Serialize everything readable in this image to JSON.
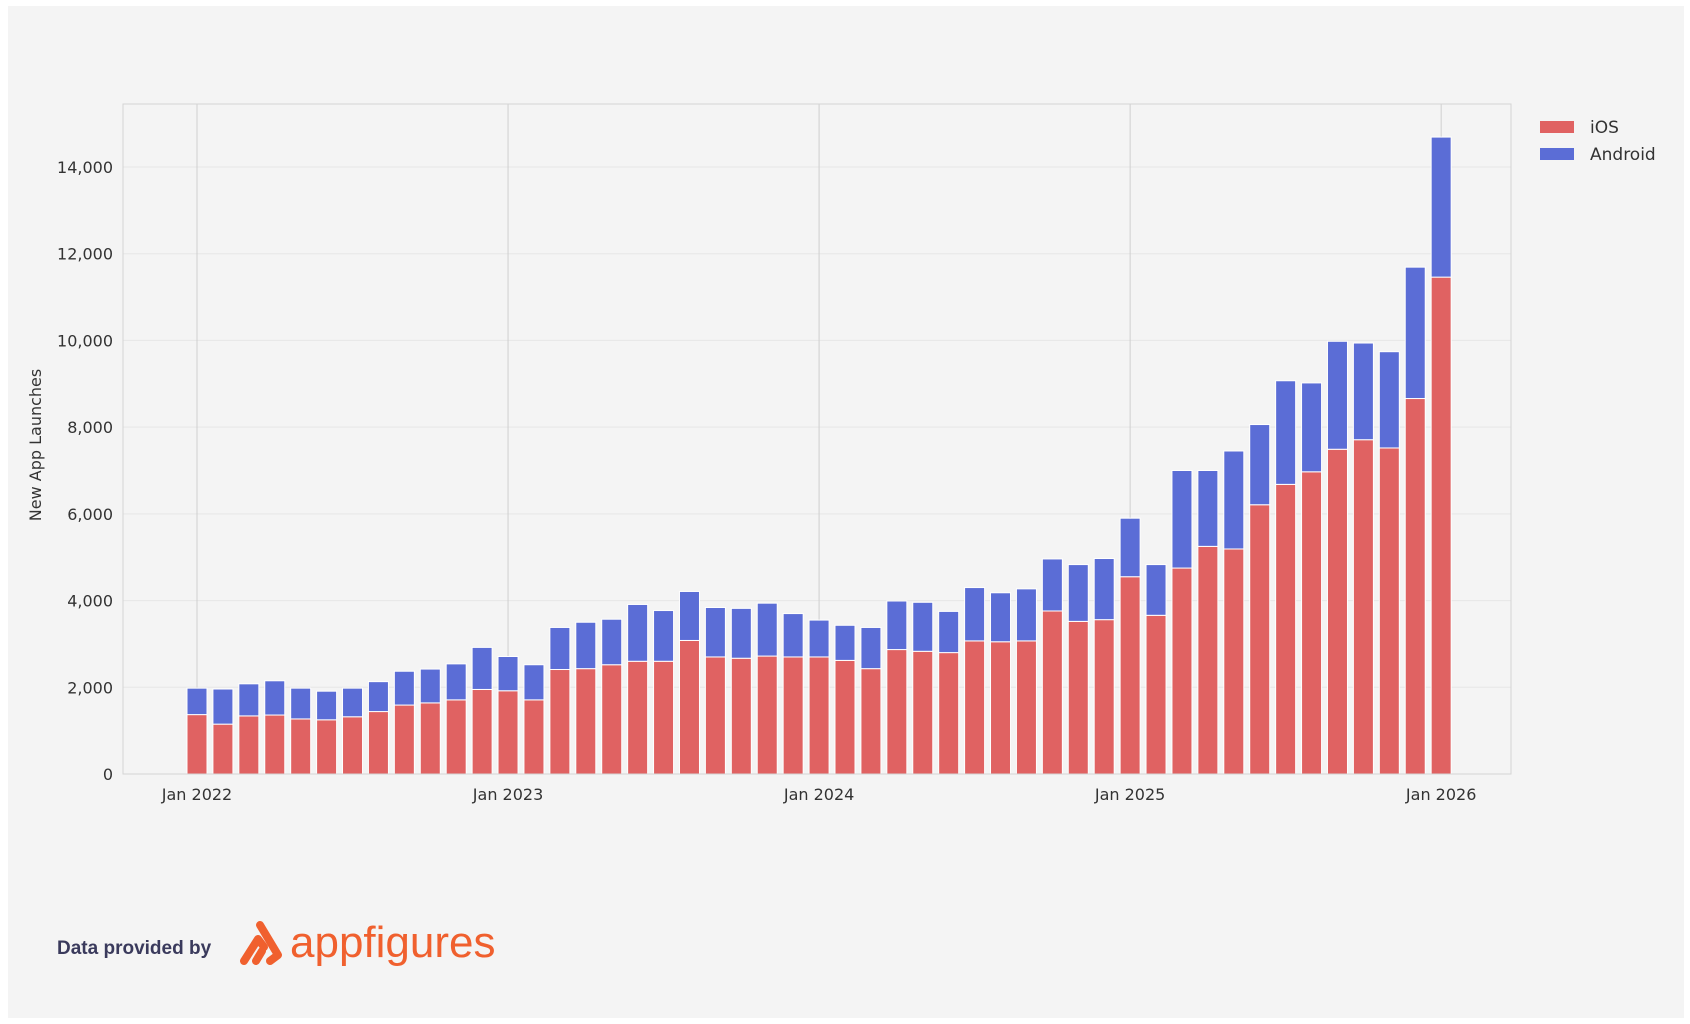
{
  "chart_data": {
    "type": "bar",
    "stacked": true,
    "title": "",
    "xlabel": "",
    "ylabel": "New App Launches",
    "ylim": [
      0,
      15000
    ],
    "yticks": [
      "0",
      "2,000",
      "4,000",
      "6,000",
      "8,000",
      "10,000",
      "12,000",
      "14,000"
    ],
    "ytick_values": [
      0,
      2000,
      4000,
      6000,
      8000,
      10000,
      12000,
      14000
    ],
    "xtick_labels": [
      "Jan 2022",
      "Jan 2023",
      "Jan 2024",
      "Jan 2025",
      "Jan 2026"
    ],
    "grid": true,
    "legend_position": "top-right",
    "x": [
      "2022-01",
      "2022-02",
      "2022-03",
      "2022-04",
      "2022-05",
      "2022-06",
      "2022-07",
      "2022-08",
      "2022-09",
      "2022-10",
      "2022-11",
      "2022-12",
      "2023-01",
      "2023-02",
      "2023-03",
      "2023-04",
      "2023-05",
      "2023-06",
      "2023-07",
      "2023-08",
      "2023-09",
      "2023-10",
      "2023-11",
      "2023-12",
      "2024-01",
      "2024-02",
      "2024-03",
      "2024-04",
      "2024-05",
      "2024-06",
      "2024-07",
      "2024-08",
      "2024-09",
      "2024-10",
      "2024-11",
      "2024-12",
      "2025-01",
      "2025-02",
      "2025-03",
      "2025-04",
      "2025-05",
      "2025-06",
      "2025-07",
      "2025-08",
      "2025-09",
      "2025-10",
      "2025-11",
      "2025-12",
      "2026-01"
    ],
    "series": [
      {
        "name": "iOS",
        "color": "#e06262",
        "values": [
          1370,
          1150,
          1340,
          1360,
          1270,
          1250,
          1320,
          1440,
          1590,
          1640,
          1710,
          1950,
          1920,
          1710,
          2410,
          2430,
          2520,
          2600,
          2600,
          3080,
          2700,
          2670,
          2720,
          2700,
          2700,
          2620,
          2430,
          2870,
          2830,
          2800,
          3070,
          3050,
          3070,
          3760,
          3520,
          3560,
          4550,
          3660,
          4750,
          5250,
          5190,
          6210,
          6680,
          6970,
          7490,
          7710,
          7520,
          8660,
          11460
        ]
      },
      {
        "name": "Android",
        "color": "#5b6dd6",
        "values": [
          610,
          810,
          740,
          790,
          710,
          660,
          660,
          690,
          780,
          780,
          830,
          970,
          790,
          810,
          970,
          1070,
          1050,
          1310,
          1170,
          1130,
          1140,
          1150,
          1220,
          1000,
          850,
          810,
          950,
          1120,
          1130,
          950,
          1230,
          1130,
          1200,
          1200,
          1310,
          1410,
          1350,
          1170,
          2250,
          1750,
          2260,
          1850,
          2390,
          2050,
          2490,
          2230,
          2220,
          3030,
          3230
        ]
      }
    ]
  },
  "footer": {
    "label": "Data provided by",
    "logo_text": "appfigures",
    "logo_color": "#f0602e"
  }
}
